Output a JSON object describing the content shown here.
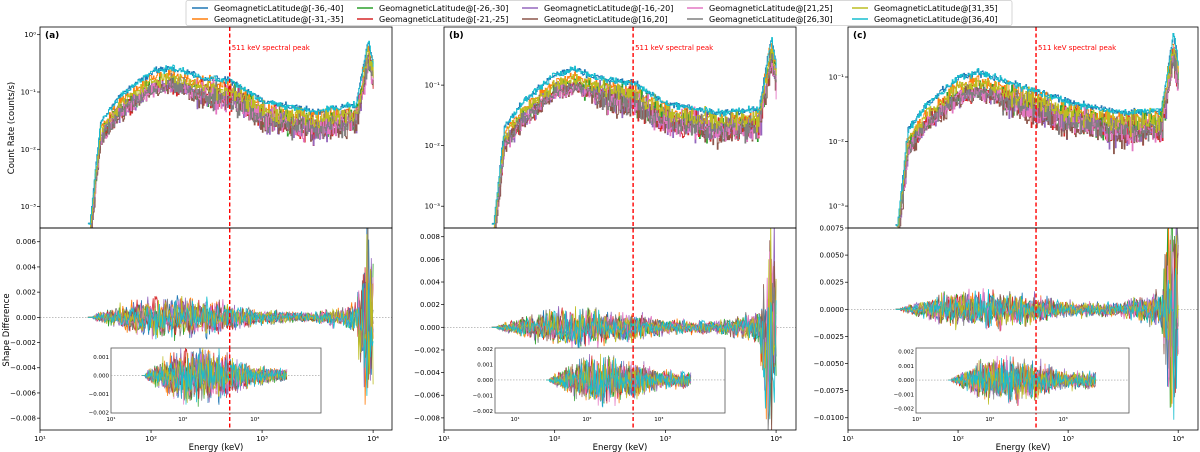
{
  "legend": {
    "placement": "top-center",
    "entries": [
      "GeomagneticLatitude@[-36,-40]",
      "GeomagneticLatitude@[-31,-35]",
      "GeomagneticLatitude@[-26,-30]",
      "GeomagneticLatitude@[-21,-25]",
      "GeomagneticLatitude@[-16,-20]",
      "GeomagneticLatitude@[16,20]",
      "GeomagneticLatitude@[21,25]",
      "GeomagneticLatitude@[26,30]",
      "GeomagneticLatitude@[31,35]",
      "GeomagneticLatitude@[36,40]"
    ],
    "colors": [
      "#1f77b4",
      "#ff7f0e",
      "#2ca02c",
      "#d62728",
      "#9467bd",
      "#8c564b",
      "#e377c2",
      "#7f7f7f",
      "#bcbd22",
      "#17becf"
    ]
  },
  "chart_data": [
    {
      "type": "line",
      "panel_label": "(a)",
      "xlabel": "Energy (keV)",
      "ylabel": "Count Rate (counts/s)",
      "ylabel_bottom": "Shape Difference",
      "x_scale": "log",
      "top_y_scale": "log",
      "annotation": {
        "text": "511 keV spectral peak",
        "x": 511,
        "color": "#ff0000",
        "style": "dashed"
      },
      "x_ticks": [
        "10¹",
        "10²",
        "10³",
        "10⁴"
      ],
      "top_y_ticks": [
        "10⁰",
        "10⁻¹",
        "10⁻²",
        "10⁻³"
      ],
      "bottom_y_ticks": [
        "0.006",
        "0.004",
        "0.002",
        "0.000",
        "−0.002",
        "−0.004",
        "−0.006",
        "−0.008"
      ],
      "inset_x_ticks": [
        "10¹",
        "10²",
        "10³"
      ],
      "inset_y_ticks": [
        "0.001",
        "0.000",
        "−0.001",
        "−0.002"
      ],
      "energy_keV": [
        28,
        35,
        50,
        100,
        150,
        300,
        511,
        1000,
        3000,
        7000,
        9000,
        10000
      ],
      "series": [
        {
          "values": [
            0.0005,
            0.03,
            0.08,
            0.22,
            0.27,
            0.17,
            0.16,
            0.07,
            0.045,
            0.06,
            0.8,
            0.3
          ]
        },
        {
          "values": [
            0.0004,
            0.023,
            0.06,
            0.17,
            0.2,
            0.13,
            0.12,
            0.053,
            0.034,
            0.045,
            0.6,
            0.23
          ]
        },
        {
          "values": [
            0.0003,
            0.017,
            0.044,
            0.12,
            0.15,
            0.094,
            0.088,
            0.039,
            0.025,
            0.033,
            0.44,
            0.17
          ]
        },
        {
          "values": [
            0.0003,
            0.015,
            0.04,
            0.11,
            0.135,
            0.085,
            0.08,
            0.035,
            0.022,
            0.03,
            0.4,
            0.15
          ]
        },
        {
          "values": [
            0.0003,
            0.015,
            0.04,
            0.11,
            0.135,
            0.085,
            0.08,
            0.035,
            0.022,
            0.03,
            0.4,
            0.15
          ]
        },
        {
          "values": [
            0.0002,
            0.014,
            0.038,
            0.11,
            0.13,
            0.082,
            0.077,
            0.034,
            0.022,
            0.029,
            0.38,
            0.14
          ]
        },
        {
          "values": [
            0.0003,
            0.015,
            0.04,
            0.11,
            0.135,
            0.085,
            0.08,
            0.035,
            0.022,
            0.03,
            0.4,
            0.15
          ]
        },
        {
          "values": [
            0.0003,
            0.016,
            0.042,
            0.11,
            0.14,
            0.088,
            0.083,
            0.036,
            0.023,
            0.031,
            0.42,
            0.16
          ]
        },
        {
          "values": [
            0.0004,
            0.021,
            0.056,
            0.15,
            0.19,
            0.12,
            0.11,
            0.049,
            0.032,
            0.042,
            0.56,
            0.21
          ]
        },
        {
          "values": [
            0.0005,
            0.03,
            0.08,
            0.22,
            0.27,
            0.17,
            0.16,
            0.07,
            0.045,
            0.06,
            0.8,
            0.3
          ]
        }
      ],
      "shape_difference_amplitude": [
        0,
        0.0003,
        0.0006,
        0.0012,
        0.0012,
        0.001,
        0.0008,
        0.0004,
        0.0003,
        0.0008,
        0.006,
        0.004
      ]
    },
    {
      "type": "line",
      "panel_label": "(b)",
      "xlabel": "Energy (keV)",
      "x_scale": "log",
      "top_y_scale": "log",
      "annotation": {
        "text": "511 keV spectral peak",
        "x": 511,
        "color": "#ff0000",
        "style": "dashed"
      },
      "x_ticks": [
        "10¹",
        "10²",
        "10³",
        "10⁴"
      ],
      "top_y_ticks": [
        "10⁻¹",
        "10⁻²",
        "10⁻³"
      ],
      "bottom_y_ticks": [
        "0.008",
        "0.006",
        "0.004",
        "0.002",
        "0.000",
        "−0.002",
        "−0.004",
        "−0.006",
        "−0.008"
      ],
      "inset_x_ticks": [
        "10¹",
        "10²",
        "10³"
      ],
      "inset_y_ticks": [
        "0.002",
        "0.001",
        "0.000",
        "−0.001",
        "−0.002"
      ],
      "energy_keV": [
        28,
        35,
        50,
        100,
        150,
        300,
        511,
        1000,
        3000,
        7000,
        9000,
        10000
      ],
      "series": [
        {
          "values": [
            0.0005,
            0.02,
            0.05,
            0.15,
            0.18,
            0.12,
            0.11,
            0.05,
            0.035,
            0.04,
            0.6,
            0.2
          ]
        },
        {
          "values": [
            0.0004,
            0.015,
            0.038,
            0.11,
            0.135,
            0.09,
            0.083,
            0.038,
            0.026,
            0.03,
            0.45,
            0.15
          ]
        },
        {
          "values": [
            0.0003,
            0.011,
            0.028,
            0.083,
            0.099,
            0.066,
            0.061,
            0.028,
            0.019,
            0.022,
            0.33,
            0.11
          ]
        },
        {
          "values": [
            0.0003,
            0.01,
            0.025,
            0.075,
            0.09,
            0.06,
            0.055,
            0.025,
            0.018,
            0.02,
            0.3,
            0.1
          ]
        },
        {
          "values": [
            0.0003,
            0.01,
            0.025,
            0.075,
            0.09,
            0.06,
            0.055,
            0.025,
            0.018,
            0.02,
            0.3,
            0.1
          ]
        },
        {
          "values": [
            0.0002,
            0.0096,
            0.024,
            0.072,
            0.086,
            0.058,
            0.053,
            0.024,
            0.017,
            0.019,
            0.29,
            0.096
          ]
        },
        {
          "values": [
            0.0003,
            0.01,
            0.025,
            0.075,
            0.09,
            0.06,
            0.055,
            0.025,
            0.018,
            0.02,
            0.3,
            0.1
          ]
        },
        {
          "values": [
            0.0003,
            0.01,
            0.026,
            0.078,
            0.094,
            0.062,
            0.057,
            0.026,
            0.018,
            0.021,
            0.31,
            0.1
          ]
        },
        {
          "values": [
            0.0004,
            0.014,
            0.035,
            0.105,
            0.126,
            0.084,
            0.077,
            0.035,
            0.025,
            0.028,
            0.42,
            0.14
          ]
        },
        {
          "values": [
            0.0005,
            0.02,
            0.05,
            0.15,
            0.18,
            0.12,
            0.11,
            0.05,
            0.035,
            0.04,
            0.6,
            0.2
          ]
        }
      ],
      "shape_difference_amplitude": [
        0,
        0.0003,
        0.0006,
        0.0012,
        0.0012,
        0.001,
        0.0009,
        0.0005,
        0.0004,
        0.001,
        0.008,
        0.005
      ]
    },
    {
      "type": "line",
      "panel_label": "(c)",
      "xlabel": "Energy (keV)",
      "x_scale": "log",
      "top_y_scale": "log",
      "annotation": {
        "text": "511 keV spectral peak",
        "x": 511,
        "color": "#ff0000",
        "style": "dashed"
      },
      "x_ticks": [
        "10¹",
        "10²",
        "10³",
        "10⁴"
      ],
      "top_y_ticks": [
        "10⁻¹",
        "10⁻²",
        "10⁻³"
      ],
      "bottom_y_ticks": [
        "0.0075",
        "0.0050",
        "0.0025",
        "0.0000",
        "−0.0025",
        "−0.0050",
        "−0.0075",
        "−0.0100"
      ],
      "inset_x_ticks": [
        "10¹",
        "10²",
        "10³"
      ],
      "inset_y_ticks": [
        "0.002",
        "0.001",
        "0.000",
        "−0.001",
        "−0.002"
      ],
      "energy_keV": [
        28,
        35,
        50,
        100,
        150,
        300,
        511,
        1000,
        3000,
        7000,
        9000,
        10000
      ],
      "series": [
        {
          "values": [
            0.0005,
            0.015,
            0.035,
            0.1,
            0.12,
            0.08,
            0.06,
            0.04,
            0.028,
            0.03,
            0.5,
            0.15
          ]
        },
        {
          "values": [
            0.0004,
            0.011,
            0.026,
            0.075,
            0.09,
            0.06,
            0.045,
            0.03,
            0.021,
            0.023,
            0.38,
            0.11
          ]
        },
        {
          "values": [
            0.0003,
            0.0083,
            0.019,
            0.055,
            0.066,
            0.044,
            0.033,
            0.022,
            0.015,
            0.017,
            0.28,
            0.083
          ]
        },
        {
          "values": [
            0.0003,
            0.0075,
            0.018,
            0.05,
            0.06,
            0.04,
            0.03,
            0.02,
            0.014,
            0.015,
            0.25,
            0.075
          ]
        },
        {
          "values": [
            0.0003,
            0.0075,
            0.018,
            0.05,
            0.06,
            0.04,
            0.03,
            0.02,
            0.014,
            0.015,
            0.25,
            0.075
          ]
        },
        {
          "values": [
            0.0002,
            0.0072,
            0.017,
            0.048,
            0.058,
            0.038,
            0.029,
            0.019,
            0.013,
            0.014,
            0.24,
            0.072
          ]
        },
        {
          "values": [
            0.0003,
            0.0075,
            0.018,
            0.05,
            0.06,
            0.04,
            0.03,
            0.02,
            0.014,
            0.015,
            0.25,
            0.075
          ]
        },
        {
          "values": [
            0.0003,
            0.0078,
            0.018,
            0.052,
            0.062,
            0.042,
            0.031,
            0.021,
            0.015,
            0.016,
            0.26,
            0.078
          ]
        },
        {
          "values": [
            0.0004,
            0.011,
            0.025,
            0.07,
            0.084,
            0.056,
            0.042,
            0.028,
            0.02,
            0.021,
            0.35,
            0.105
          ]
        },
        {
          "values": [
            0.0005,
            0.015,
            0.035,
            0.1,
            0.12,
            0.08,
            0.06,
            0.04,
            0.028,
            0.03,
            0.5,
            0.15
          ]
        }
      ],
      "shape_difference_amplitude": [
        0,
        0.0003,
        0.0006,
        0.0013,
        0.0013,
        0.0011,
        0.0009,
        0.0005,
        0.0005,
        0.0012,
        0.009,
        0.006
      ]
    }
  ]
}
